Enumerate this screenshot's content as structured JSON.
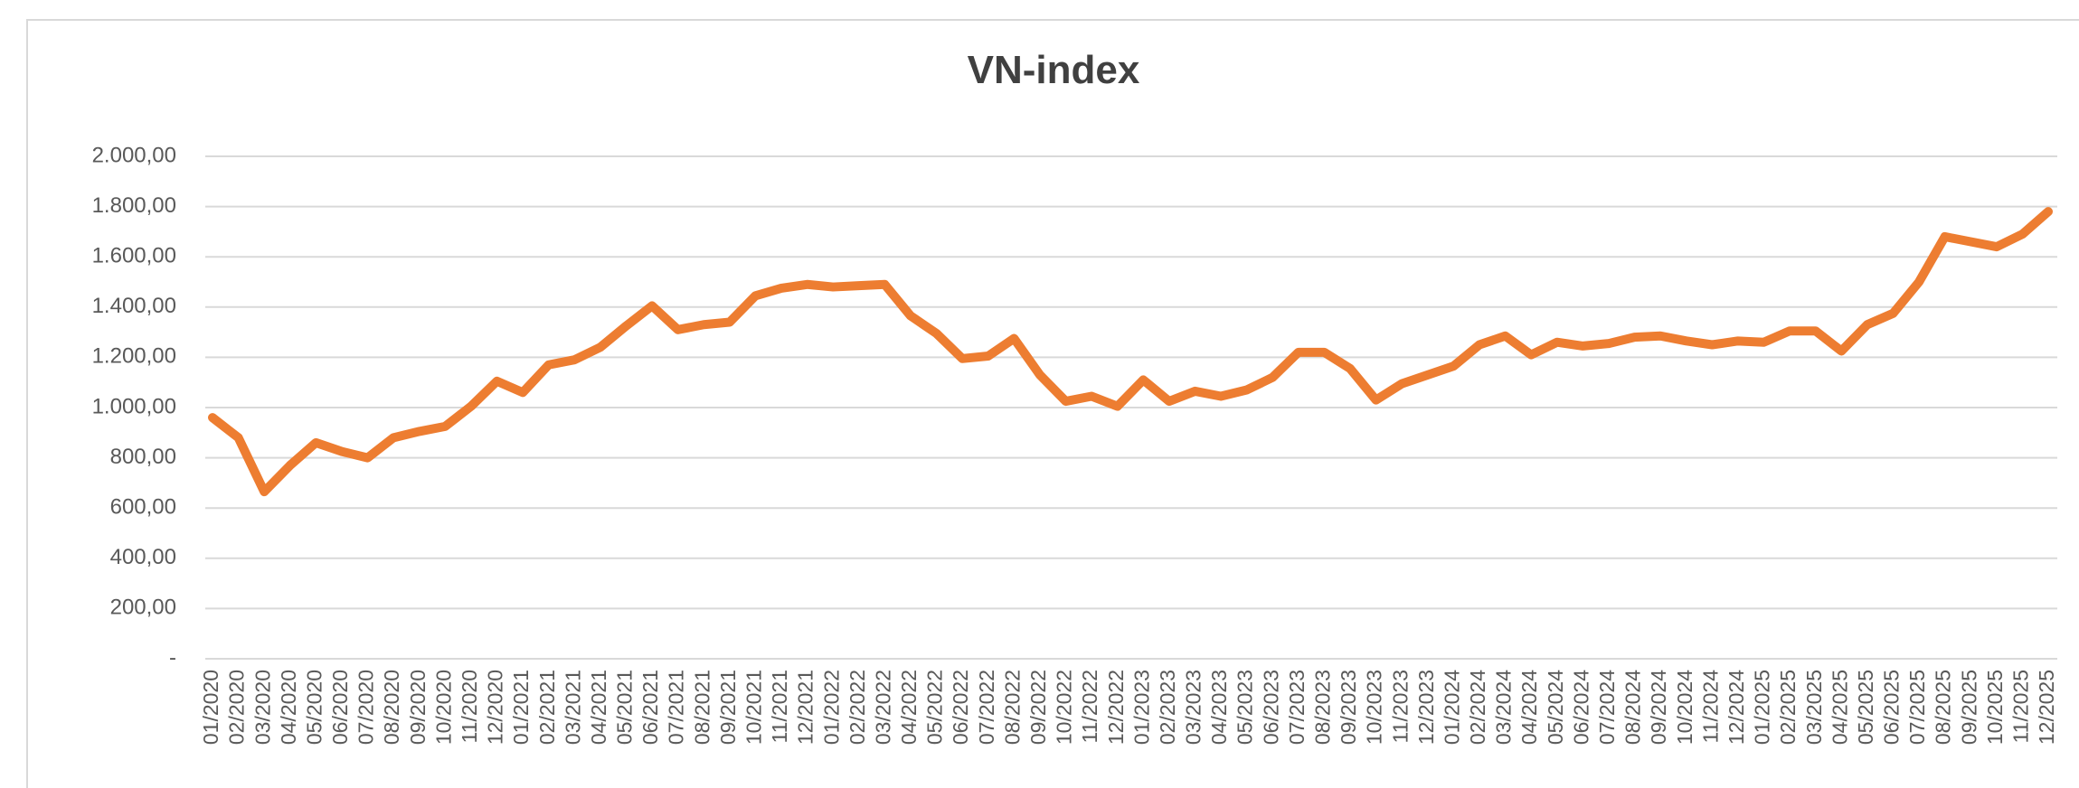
{
  "chart_data": {
    "type": "line",
    "title": "VN-index",
    "categories": [
      "01/2020",
      "02/2020",
      "03/2020",
      "04/2020",
      "05/2020",
      "06/2020",
      "07/2020",
      "08/2020",
      "09/2020",
      "10/2020",
      "11/2020",
      "12/2020",
      "01/2021",
      "02/2021",
      "03/2021",
      "04/2021",
      "05/2021",
      "06/2021",
      "07/2021",
      "08/2021",
      "09/2021",
      "10/2021",
      "11/2021",
      "12/2021",
      "01/2022",
      "02/2022",
      "03/2022",
      "04/2022",
      "05/2022",
      "06/2022",
      "07/2022",
      "08/2022",
      "09/2022",
      "10/2022",
      "11/2022",
      "12/2022",
      "01/2023",
      "02/2023",
      "03/2023",
      "04/2023",
      "05/2023",
      "06/2023",
      "07/2023",
      "08/2023",
      "09/2023",
      "10/2023",
      "11/2023",
      "12/2023",
      "01/2024",
      "02/2024",
      "03/2024",
      "04/2024",
      "05/2024",
      "06/2024",
      "07/2024",
      "08/2024",
      "09/2024",
      "10/2024",
      "11/2024",
      "12/2024",
      "01/2025",
      "02/2025",
      "03/2025",
      "04/2025",
      "05/2025",
      "06/2025",
      "07/2025",
      "08/2025",
      "09/2025",
      "10/2025",
      "11/2025",
      "12/2025"
    ],
    "series": [
      {
        "name": "VN-index",
        "color": "#ed7d31",
        "values": [
          960,
          880,
          665,
          770,
          860,
          825,
          800,
          880,
          905,
          925,
          1005,
          1105,
          1060,
          1170,
          1190,
          1240,
          1325,
          1405,
          1310,
          1330,
          1340,
          1445,
          1475,
          1490,
          1480,
          1485,
          1490,
          1365,
          1295,
          1195,
          1205,
          1275,
          1130,
          1025,
          1045,
          1005,
          1110,
          1025,
          1065,
          1045,
          1070,
          1120,
          1220,
          1220,
          1155,
          1030,
          1095,
          1130,
          1165,
          1250,
          1285,
          1210,
          1260,
          1245,
          1255,
          1280,
          1285,
          1265,
          1250,
          1265,
          1260,
          1305,
          1305,
          1225,
          1330,
          1375,
          1500,
          1680,
          1660,
          1640,
          1690,
          1780
        ]
      }
    ],
    "ylim": [
      0,
      2000
    ],
    "yticks": [
      {
        "value": 0,
        "label": "-"
      },
      {
        "value": 200,
        "label": "200,00"
      },
      {
        "value": 400,
        "label": "400,00"
      },
      {
        "value": 600,
        "label": "600,00"
      },
      {
        "value": 800,
        "label": "800,00"
      },
      {
        "value": 1000,
        "label": "1.000,00"
      },
      {
        "value": 1200,
        "label": "1.200,00"
      },
      {
        "value": 1400,
        "label": "1.400,00"
      },
      {
        "value": 1600,
        "label": "1.600,00"
      },
      {
        "value": 1800,
        "label": "1.800,00"
      },
      {
        "value": 2000,
        "label": "2.000,00"
      }
    ],
    "grid": true
  }
}
